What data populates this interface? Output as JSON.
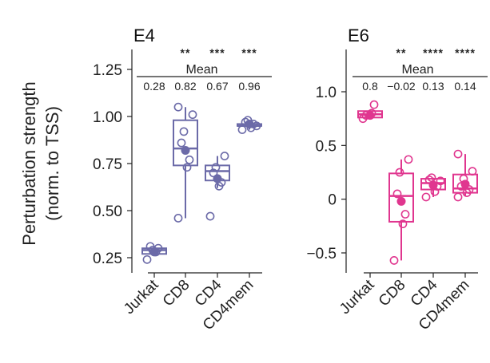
{
  "chart_data": {
    "type": "box",
    "ylabel": [
      "Perturbation strength",
      "(norm. to TSS)"
    ],
    "categories": [
      "Jurkat",
      "CD8",
      "CD4",
      "CD4mem"
    ],
    "panels": [
      {
        "title": "E4",
        "color": "#6b6aa8",
        "ylim": [
          0.2,
          1.35
        ],
        "yticks": [
          0.25,
          0.5,
          0.75,
          1.0,
          1.25
        ],
        "ytick_labels": [
          "0.25",
          "0.50",
          "0.75",
          "1.00",
          "1.25"
        ],
        "mean_label": "Mean",
        "means": [
          "0.28",
          "0.82",
          "0.67",
          "0.96"
        ],
        "significance": [
          "",
          "**",
          "***",
          "***"
        ],
        "boxes": [
          {
            "q1": 0.27,
            "median": 0.29,
            "q3": 0.3,
            "whisker_low": 0.27,
            "whisker_high": 0.3,
            "mean": 0.28,
            "points": [
              0.24,
              0.28,
              0.3,
              0.31,
              0.29
            ]
          },
          {
            "q1": 0.74,
            "median": 0.83,
            "q3": 0.98,
            "whisker_low": 0.46,
            "whisker_high": 1.05,
            "mean": 0.82,
            "points": [
              0.46,
              0.73,
              0.77,
              0.86,
              0.92,
              1.01,
              1.05
            ]
          },
          {
            "q1": 0.66,
            "median": 0.71,
            "q3": 0.74,
            "whisker_low": 0.62,
            "whisker_high": 0.79,
            "mean": 0.67,
            "points": [
              0.47,
              0.63,
              0.65,
              0.7,
              0.73,
              0.79
            ]
          },
          {
            "q1": 0.95,
            "median": 0.95,
            "q3": 0.96,
            "whisker_low": 0.93,
            "whisker_high": 0.98,
            "mean": 0.96,
            "points": [
              0.93,
              0.94,
              0.96,
              0.97,
              0.98,
              0.95
            ]
          }
        ]
      },
      {
        "title": "E6",
        "color": "#e0368f",
        "ylim": [
          -0.68,
          1.3
        ],
        "yticks": [
          -0.5,
          0,
          0.5,
          1.0
        ],
        "ytick_labels": [
          "−0.5",
          "0",
          "0.5",
          "1.0"
        ],
        "mean_label": "Mean",
        "means": [
          "0.8",
          "−0.02",
          "0.13",
          "0.14"
        ],
        "significance": [
          "",
          "**",
          "****",
          "****"
        ],
        "boxes": [
          {
            "q1": 0.76,
            "median": 0.79,
            "q3": 0.82,
            "whisker_low": 0.76,
            "whisker_high": 0.82,
            "mean": 0.78,
            "points": [
              0.75,
              0.8,
              0.88,
              0.78
            ]
          },
          {
            "q1": -0.21,
            "median": 0.03,
            "q3": 0.24,
            "whisker_low": -0.57,
            "whisker_high": 0.37,
            "mean": -0.02,
            "points": [
              -0.57,
              -0.23,
              -0.14,
              0.05,
              0.25,
              0.37
            ]
          },
          {
            "q1": 0.09,
            "median": 0.15,
            "q3": 0.19,
            "whisker_low": 0.02,
            "whisker_high": 0.2,
            "mean": 0.13,
            "points": [
              0.02,
              0.07,
              0.12,
              0.18,
              0.2,
              0.17
            ]
          },
          {
            "q1": 0.06,
            "median": 0.1,
            "q3": 0.23,
            "whisker_low": 0.03,
            "whisker_high": 0.42,
            "mean": 0.14,
            "points": [
              0.02,
              0.06,
              0.09,
              0.12,
              0.19,
              0.26,
              0.42
            ]
          }
        ]
      }
    ]
  }
}
